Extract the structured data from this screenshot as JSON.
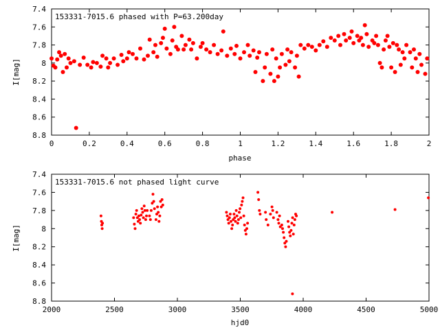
{
  "chart_data": [
    {
      "type": "scatter",
      "title": "153331-7015.6 phased with P=63.200day",
      "xlabel": "phase",
      "ylabel": "I[mag]",
      "xlim": [
        0,
        2
      ],
      "ylim": [
        8.8,
        7.4
      ],
      "y_inverted": true,
      "xticks": [
        0,
        0.2,
        0.4,
        0.6,
        0.8,
        1,
        1.2,
        1.4,
        1.6,
        1.8,
        2
      ],
      "xtick_labels": [
        "0",
        "0.2",
        "0.4",
        "0.6",
        "0.8",
        "1",
        "1.2",
        "1.4",
        "1.6",
        "1.8",
        "2"
      ],
      "yticks": [
        7.4,
        7.6,
        7.8,
        8,
        8.2,
        8.4,
        8.6,
        8.8
      ],
      "ytick_labels": [
        "7.4",
        "7.6",
        "7.8",
        "8",
        "8.2",
        "8.4",
        "8.6",
        "8.8"
      ],
      "grid": false,
      "marker_color": "#ff0000",
      "points": [
        [
          0.0,
          7.95
        ],
        [
          0.01,
          8.03
        ],
        [
          0.02,
          8.05
        ],
        [
          0.03,
          7.96
        ],
        [
          0.04,
          7.88
        ],
        [
          0.05,
          7.92
        ],
        [
          0.06,
          8.1
        ],
        [
          0.07,
          7.9
        ],
        [
          0.08,
          8.05
        ],
        [
          0.09,
          7.95
        ],
        [
          0.1,
          8.0
        ],
        [
          0.12,
          7.98
        ],
        [
          0.13,
          8.72
        ],
        [
          0.15,
          8.02
        ],
        [
          0.17,
          7.94
        ],
        [
          0.19,
          8.02
        ],
        [
          0.21,
          8.05
        ],
        [
          0.22,
          7.99
        ],
        [
          0.24,
          8.0
        ],
        [
          0.26,
          8.04
        ],
        [
          0.27,
          7.92
        ],
        [
          0.29,
          7.95
        ],
        [
          0.3,
          8.05
        ],
        [
          0.31,
          8.0
        ],
        [
          0.33,
          7.95
        ],
        [
          0.35,
          8.02
        ],
        [
          0.37,
          7.91
        ],
        [
          0.38,
          7.98
        ],
        [
          0.4,
          7.95
        ],
        [
          0.41,
          7.88
        ],
        [
          0.43,
          7.9
        ],
        [
          0.45,
          7.95
        ],
        [
          0.47,
          7.84
        ],
        [
          0.49,
          7.96
        ],
        [
          0.51,
          7.92
        ],
        [
          0.52,
          7.74
        ],
        [
          0.54,
          7.88
        ],
        [
          0.55,
          7.8
        ],
        [
          0.56,
          7.93
        ],
        [
          0.58,
          7.78
        ],
        [
          0.59,
          7.72
        ],
        [
          0.6,
          7.62
        ],
        [
          0.61,
          7.84
        ],
        [
          0.63,
          7.9
        ],
        [
          0.64,
          7.75
        ],
        [
          0.65,
          7.6
        ],
        [
          0.66,
          7.82
        ],
        [
          0.67,
          7.85
        ],
        [
          0.69,
          7.7
        ],
        [
          0.7,
          7.85
        ],
        [
          0.71,
          7.8
        ],
        [
          0.73,
          7.74
        ],
        [
          0.74,
          7.85
        ],
        [
          0.75,
          7.78
        ],
        [
          0.77,
          7.95
        ],
        [
          0.79,
          7.82
        ],
        [
          0.8,
          7.78
        ],
        [
          0.82,
          7.85
        ],
        [
          0.84,
          7.88
        ],
        [
          0.86,
          7.8
        ],
        [
          0.88,
          7.9
        ],
        [
          0.9,
          7.86
        ],
        [
          0.91,
          7.65
        ],
        [
          0.93,
          7.92
        ],
        [
          0.95,
          7.84
        ],
        [
          0.97,
          7.9
        ],
        [
          0.98,
          7.81
        ],
        [
          1.0,
          7.95
        ],
        [
          1.02,
          7.88
        ],
        [
          1.04,
          7.8
        ],
        [
          1.05,
          7.92
        ],
        [
          1.07,
          7.86
        ],
        [
          1.08,
          8.1
        ],
        [
          1.09,
          7.94
        ],
        [
          1.1,
          7.88
        ],
        [
          1.12,
          8.2
        ],
        [
          1.13,
          8.05
        ],
        [
          1.14,
          7.9
        ],
        [
          1.16,
          8.12
        ],
        [
          1.17,
          7.85
        ],
        [
          1.18,
          8.2
        ],
        [
          1.19,
          7.95
        ],
        [
          1.2,
          8.15
        ],
        [
          1.21,
          8.05
        ],
        [
          1.22,
          7.9
        ],
        [
          1.24,
          8.02
        ],
        [
          1.25,
          7.85
        ],
        [
          1.26,
          7.98
        ],
        [
          1.27,
          7.88
        ],
        [
          1.29,
          8.05
        ],
        [
          1.3,
          7.92
        ],
        [
          1.31,
          8.15
        ],
        [
          1.32,
          7.8
        ],
        [
          1.34,
          7.84
        ],
        [
          1.36,
          7.8
        ],
        [
          1.38,
          7.82
        ],
        [
          1.4,
          7.86
        ],
        [
          1.42,
          7.8
        ],
        [
          1.44,
          7.76
        ],
        [
          1.46,
          7.82
        ],
        [
          1.48,
          7.72
        ],
        [
          1.5,
          7.75
        ],
        [
          1.52,
          7.7
        ],
        [
          1.53,
          7.8
        ],
        [
          1.55,
          7.68
        ],
        [
          1.56,
          7.75
        ],
        [
          1.58,
          7.72
        ],
        [
          1.59,
          7.65
        ],
        [
          1.6,
          7.78
        ],
        [
          1.62,
          7.7
        ],
        [
          1.63,
          7.75
        ],
        [
          1.64,
          7.72
        ],
        [
          1.65,
          7.8
        ],
        [
          1.66,
          7.58
        ],
        [
          1.67,
          7.68
        ],
        [
          1.68,
          7.82
        ],
        [
          1.7,
          7.75
        ],
        [
          1.71,
          7.78
        ],
        [
          1.72,
          7.7
        ],
        [
          1.73,
          7.8
        ],
        [
          1.74,
          8.0
        ],
        [
          1.75,
          8.05
        ],
        [
          1.76,
          7.85
        ],
        [
          1.77,
          7.75
        ],
        [
          1.78,
          7.7
        ],
        [
          1.79,
          7.82
        ],
        [
          1.8,
          8.05
        ],
        [
          1.81,
          7.78
        ],
        [
          1.82,
          8.1
        ],
        [
          1.83,
          7.8
        ],
        [
          1.84,
          7.85
        ],
        [
          1.85,
          8.02
        ],
        [
          1.86,
          7.88
        ],
        [
          1.87,
          7.95
        ],
        [
          1.88,
          7.8
        ],
        [
          1.9,
          7.88
        ],
        [
          1.91,
          8.05
        ],
        [
          1.92,
          7.85
        ],
        [
          1.93,
          7.95
        ],
        [
          1.94,
          8.1
        ],
        [
          1.95,
          7.9
        ],
        [
          1.96,
          8.02
        ],
        [
          1.98,
          8.12
        ],
        [
          1.99,
          7.95
        ]
      ]
    },
    {
      "type": "scatter",
      "title": "153331-7015.6 not phased light curve",
      "xlabel": "hjd0",
      "ylabel": "I[mag]",
      "xlim": [
        2000,
        5000
      ],
      "ylim": [
        8.8,
        7.4
      ],
      "y_inverted": true,
      "xticks": [
        2000,
        2500,
        3000,
        3500,
        4000,
        4500,
        5000
      ],
      "xtick_labels": [
        "2000",
        "2500",
        "3000",
        "3500",
        "4000",
        "4500",
        "5000"
      ],
      "yticks": [
        7.4,
        7.6,
        7.8,
        8,
        8.2,
        8.4,
        8.6,
        8.8
      ],
      "ytick_labels": [
        "7.4",
        "7.6",
        "7.8",
        "8",
        "8.2",
        "8.4",
        "8.6",
        "8.8"
      ],
      "grid": false,
      "marker_color": "#ff0000",
      "points": [
        [
          2393,
          7.86
        ],
        [
          2396,
          7.92
        ],
        [
          2399,
          7.96
        ],
        [
          2402,
          8.0
        ],
        [
          2405,
          7.94
        ],
        [
          2652,
          7.88
        ],
        [
          2658,
          7.95
        ],
        [
          2664,
          8.0
        ],
        [
          2670,
          7.84
        ],
        [
          2676,
          7.8
        ],
        [
          2682,
          7.88
        ],
        [
          2688,
          7.92
        ],
        [
          2694,
          7.86
        ],
        [
          2700,
          7.9
        ],
        [
          2706,
          7.94
        ],
        [
          2712,
          7.85
        ],
        [
          2718,
          7.78
        ],
        [
          2724,
          7.82
        ],
        [
          2730,
          7.88
        ],
        [
          2736,
          7.75
        ],
        [
          2742,
          7.8
        ],
        [
          2748,
          7.9
        ],
        [
          2754,
          7.86
        ],
        [
          2760,
          7.8
        ],
        [
          2778,
          7.86
        ],
        [
          2786,
          7.9
        ],
        [
          2792,
          7.8
        ],
        [
          2800,
          7.72
        ],
        [
          2806,
          7.62
        ],
        [
          2812,
          7.7
        ],
        [
          2818,
          7.78
        ],
        [
          2830,
          7.9
        ],
        [
          2836,
          7.84
        ],
        [
          2842,
          7.76
        ],
        [
          2848,
          7.82
        ],
        [
          2854,
          7.92
        ],
        [
          2860,
          7.86
        ],
        [
          2866,
          7.7
        ],
        [
          2872,
          7.76
        ],
        [
          2878,
          7.68
        ],
        [
          2884,
          7.74
        ],
        [
          3390,
          7.82
        ],
        [
          3396,
          7.86
        ],
        [
          3402,
          7.9
        ],
        [
          3408,
          7.94
        ],
        [
          3414,
          7.88
        ],
        [
          3420,
          7.84
        ],
        [
          3426,
          7.92
        ],
        [
          3432,
          8.0
        ],
        [
          3438,
          7.96
        ],
        [
          3444,
          7.9
        ],
        [
          3450,
          7.84
        ],
        [
          3456,
          7.88
        ],
        [
          3462,
          7.92
        ],
        [
          3468,
          7.8
        ],
        [
          3474,
          7.86
        ],
        [
          3480,
          7.94
        ],
        [
          3486,
          7.9
        ],
        [
          3492,
          7.82
        ],
        [
          3498,
          7.78
        ],
        [
          3504,
          7.88
        ],
        [
          3510,
          7.74
        ],
        [
          3516,
          7.7
        ],
        [
          3522,
          7.66
        ],
        [
          3528,
          7.86
        ],
        [
          3534,
          7.96
        ],
        [
          3540,
          8.02
        ],
        [
          3546,
          8.06
        ],
        [
          3552,
          8.0
        ],
        [
          3558,
          7.94
        ],
        [
          3640,
          7.6
        ],
        [
          3646,
          7.68
        ],
        [
          3652,
          7.8
        ],
        [
          3658,
          7.84
        ],
        [
          3700,
          7.82
        ],
        [
          3706,
          7.9
        ],
        [
          3720,
          7.96
        ],
        [
          3740,
          7.84
        ],
        [
          3752,
          7.76
        ],
        [
          3758,
          7.8
        ],
        [
          3764,
          7.88
        ],
        [
          3790,
          7.82
        ],
        [
          3800,
          7.9
        ],
        [
          3806,
          7.94
        ],
        [
          3812,
          7.86
        ],
        [
          3818,
          7.98
        ],
        [
          3830,
          7.96
        ],
        [
          3836,
          8.0
        ],
        [
          3842,
          8.04
        ],
        [
          3848,
          8.1
        ],
        [
          3854,
          8.16
        ],
        [
          3860,
          8.2
        ],
        [
          3866,
          8.14
        ],
        [
          3880,
          7.92
        ],
        [
          3886,
          7.98
        ],
        [
          3892,
          8.04
        ],
        [
          3898,
          8.08
        ],
        [
          3904,
          8.02
        ],
        [
          3910,
          7.94
        ],
        [
          3916,
          7.88
        ],
        [
          3922,
          8.06
        ],
        [
          3928,
          7.96
        ],
        [
          3934,
          7.9
        ],
        [
          3940,
          7.84
        ],
        [
          3946,
          7.86
        ],
        [
          3915,
          8.72
        ],
        [
          4230,
          7.82
        ],
        [
          4730,
          7.79
        ],
        [
          4995,
          7.66
        ]
      ]
    }
  ]
}
